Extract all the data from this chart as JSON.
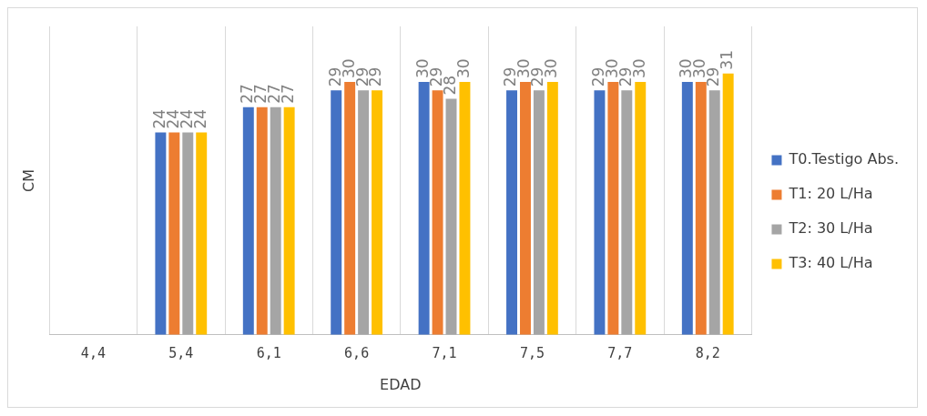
{
  "chart_data": {
    "type": "bar",
    "xlabel": "EDAD",
    "ylabel": "CM",
    "categories": [
      "4,4",
      "5,4",
      "6,1",
      "6,6",
      "7,1",
      "7,5",
      "7,7",
      "8,2"
    ],
    "series": [
      {
        "name": "T0.Testigo Abs.",
        "color": "#4472c4",
        "values": [
          null,
          24,
          27,
          29,
          30,
          29,
          29,
          30
        ]
      },
      {
        "name": "T1: 20 L/Ha",
        "color": "#ed7d31",
        "values": [
          null,
          24,
          27,
          30,
          29,
          30,
          30,
          30
        ]
      },
      {
        "name": "T2: 30 L/Ha",
        "color": "#a5a5a5",
        "values": [
          null,
          24,
          27,
          29,
          28,
          29,
          29,
          29
        ]
      },
      {
        "name": "T3: 40 L/Ha",
        "color": "#ffc000",
        "values": [
          null,
          24,
          27,
          29,
          30,
          30,
          30,
          31
        ]
      }
    ],
    "data_labels": true,
    "grid": "x",
    "legend": "right"
  }
}
